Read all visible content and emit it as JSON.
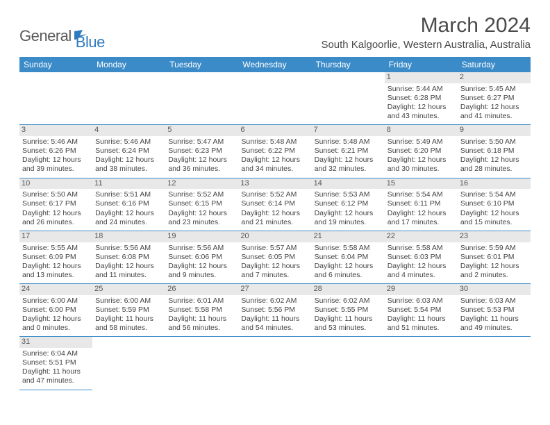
{
  "logo": {
    "word1": "General",
    "word2": "Blue"
  },
  "title": "March 2024",
  "subtitle": "South Kalgoorlie, Western Australia, Australia",
  "colors": {
    "header_bg": "#3b8bc8",
    "header_text": "#ffffff",
    "daynum_bg": "#e8e8e8",
    "row_border": "#3b8bc8",
    "logo_gray": "#5a5a5a",
    "logo_blue": "#2f7bbf"
  },
  "weekdays": [
    "Sunday",
    "Monday",
    "Tuesday",
    "Wednesday",
    "Thursday",
    "Friday",
    "Saturday"
  ],
  "weeks": [
    [
      null,
      null,
      null,
      null,
      null,
      {
        "n": "1",
        "sr": "5:44 AM",
        "ss": "6:28 PM",
        "dl": "12 hours and 43 minutes."
      },
      {
        "n": "2",
        "sr": "5:45 AM",
        "ss": "6:27 PM",
        "dl": "12 hours and 41 minutes."
      }
    ],
    [
      {
        "n": "3",
        "sr": "5:46 AM",
        "ss": "6:26 PM",
        "dl": "12 hours and 39 minutes."
      },
      {
        "n": "4",
        "sr": "5:46 AM",
        "ss": "6:24 PM",
        "dl": "12 hours and 38 minutes."
      },
      {
        "n": "5",
        "sr": "5:47 AM",
        "ss": "6:23 PM",
        "dl": "12 hours and 36 minutes."
      },
      {
        "n": "6",
        "sr": "5:48 AM",
        "ss": "6:22 PM",
        "dl": "12 hours and 34 minutes."
      },
      {
        "n": "7",
        "sr": "5:48 AM",
        "ss": "6:21 PM",
        "dl": "12 hours and 32 minutes."
      },
      {
        "n": "8",
        "sr": "5:49 AM",
        "ss": "6:20 PM",
        "dl": "12 hours and 30 minutes."
      },
      {
        "n": "9",
        "sr": "5:50 AM",
        "ss": "6:18 PM",
        "dl": "12 hours and 28 minutes."
      }
    ],
    [
      {
        "n": "10",
        "sr": "5:50 AM",
        "ss": "6:17 PM",
        "dl": "12 hours and 26 minutes."
      },
      {
        "n": "11",
        "sr": "5:51 AM",
        "ss": "6:16 PM",
        "dl": "12 hours and 24 minutes."
      },
      {
        "n": "12",
        "sr": "5:52 AM",
        "ss": "6:15 PM",
        "dl": "12 hours and 23 minutes."
      },
      {
        "n": "13",
        "sr": "5:52 AM",
        "ss": "6:14 PM",
        "dl": "12 hours and 21 minutes."
      },
      {
        "n": "14",
        "sr": "5:53 AM",
        "ss": "6:12 PM",
        "dl": "12 hours and 19 minutes."
      },
      {
        "n": "15",
        "sr": "5:54 AM",
        "ss": "6:11 PM",
        "dl": "12 hours and 17 minutes."
      },
      {
        "n": "16",
        "sr": "5:54 AM",
        "ss": "6:10 PM",
        "dl": "12 hours and 15 minutes."
      }
    ],
    [
      {
        "n": "17",
        "sr": "5:55 AM",
        "ss": "6:09 PM",
        "dl": "12 hours and 13 minutes."
      },
      {
        "n": "18",
        "sr": "5:56 AM",
        "ss": "6:08 PM",
        "dl": "12 hours and 11 minutes."
      },
      {
        "n": "19",
        "sr": "5:56 AM",
        "ss": "6:06 PM",
        "dl": "12 hours and 9 minutes."
      },
      {
        "n": "20",
        "sr": "5:57 AM",
        "ss": "6:05 PM",
        "dl": "12 hours and 7 minutes."
      },
      {
        "n": "21",
        "sr": "5:58 AM",
        "ss": "6:04 PM",
        "dl": "12 hours and 6 minutes."
      },
      {
        "n": "22",
        "sr": "5:58 AM",
        "ss": "6:03 PM",
        "dl": "12 hours and 4 minutes."
      },
      {
        "n": "23",
        "sr": "5:59 AM",
        "ss": "6:01 PM",
        "dl": "12 hours and 2 minutes."
      }
    ],
    [
      {
        "n": "24",
        "sr": "6:00 AM",
        "ss": "6:00 PM",
        "dl": "12 hours and 0 minutes."
      },
      {
        "n": "25",
        "sr": "6:00 AM",
        "ss": "5:59 PM",
        "dl": "11 hours and 58 minutes."
      },
      {
        "n": "26",
        "sr": "6:01 AM",
        "ss": "5:58 PM",
        "dl": "11 hours and 56 minutes."
      },
      {
        "n": "27",
        "sr": "6:02 AM",
        "ss": "5:56 PM",
        "dl": "11 hours and 54 minutes."
      },
      {
        "n": "28",
        "sr": "6:02 AM",
        "ss": "5:55 PM",
        "dl": "11 hours and 53 minutes."
      },
      {
        "n": "29",
        "sr": "6:03 AM",
        "ss": "5:54 PM",
        "dl": "11 hours and 51 minutes."
      },
      {
        "n": "30",
        "sr": "6:03 AM",
        "ss": "5:53 PM",
        "dl": "11 hours and 49 minutes."
      }
    ],
    [
      {
        "n": "31",
        "sr": "6:04 AM",
        "ss": "5:51 PM",
        "dl": "11 hours and 47 minutes."
      },
      null,
      null,
      null,
      null,
      null,
      null
    ]
  ],
  "labels": {
    "sunrise": "Sunrise: ",
    "sunset": "Sunset: ",
    "daylight": "Daylight: "
  }
}
